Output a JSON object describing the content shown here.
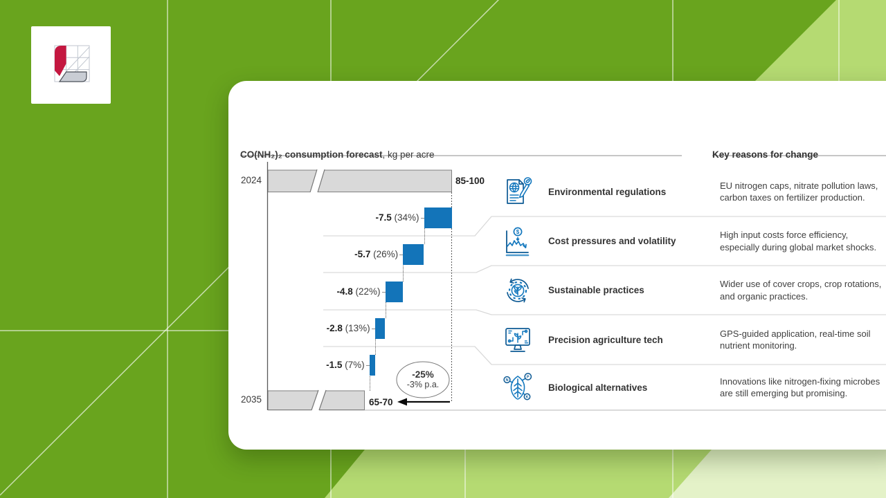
{
  "colors": {
    "bar_blue": "#1374b9",
    "bar_gray": "#d9d9d9",
    "accent_blue": "#1478be",
    "background_green": "#69a41e",
    "background_light_green": "#b5da72",
    "logo_red": "#c41740"
  },
  "chart": {
    "title": "CO(NH₂)₂ consumption forecast",
    "unit": ", kg per acre",
    "start_year": "2024",
    "start_value": "85-100",
    "end_year": "2035",
    "end_value": "65-70",
    "badge_line1": "-25%",
    "badge_line2": "-3% p.a."
  },
  "chart_data": {
    "type": "waterfall",
    "title": "CO(NH₂)₂ consumption forecast",
    "unit": "kg per acre",
    "start": {
      "label": "2024",
      "value": "85-100"
    },
    "end": {
      "label": "2035",
      "value": "65-70"
    },
    "steps": [
      {
        "label": "-7.5",
        "pct": "(34%)",
        "change": -7.5,
        "reason": "Environmental regulations"
      },
      {
        "label": "-5.7",
        "pct": "(26%)",
        "change": -5.7,
        "reason": "Cost pressures and volatility"
      },
      {
        "label": "-4.8",
        "pct": "(22%)",
        "change": -4.8,
        "reason": "Sustainable practices"
      },
      {
        "label": "-2.8",
        "pct": "(13%)",
        "change": -2.8,
        "reason": "Precision agriculture tech"
      },
      {
        "label": "-1.5",
        "pct": "(7%)",
        "change": -1.5,
        "reason": "Biological alternatives"
      }
    ],
    "total_change": "-25%",
    "cagr": "-3% p.a.",
    "legend_position": "none",
    "grid": "light step connectors"
  },
  "reasons": {
    "header": "Key reasons for change",
    "items": [
      {
        "title": "Environmental regulations",
        "desc": "EU nitrogen caps, nitrate pollution laws, carbon taxes on fertilizer production."
      },
      {
        "title": "Cost pressures and volatility",
        "desc": "High input costs force efficiency, especially during global market shocks."
      },
      {
        "title": "Sustainable practices",
        "desc": "Wider use of cover crops, crop rotations, and organic practices."
      },
      {
        "title": "Precision agriculture tech",
        "desc": "GPS-guided application, real-time soil nutrient monitoring."
      },
      {
        "title": "Biological alternatives",
        "desc": "Innovations like nitrogen-fixing microbes are still emerging but promising."
      }
    ]
  },
  "icon_text": {
    "currency": "$",
    "n": "N",
    "p": "P",
    "k": "K"
  }
}
